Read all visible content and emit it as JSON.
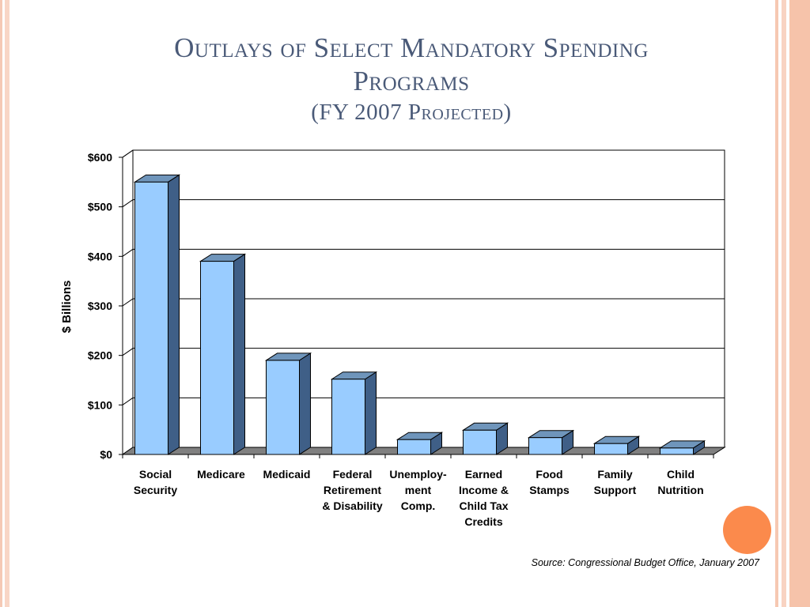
{
  "slide": {
    "title_line1": "Outlays of Select Mandatory Spending",
    "title_line2": "Programs",
    "title_line3": "(FY 2007 Projected)",
    "source": "Source: Congressional Budget Office, January 2007"
  },
  "colors": {
    "bar_front": "#99ccff",
    "bar_top": "#6f95bb",
    "bar_side": "#3f5f87",
    "title": "#4a5a78",
    "accent_circle": "#fb8a4c"
  },
  "chart_data": {
    "type": "bar",
    "title": "",
    "xlabel": "",
    "ylabel": "$ Billions",
    "ylim": [
      0,
      600
    ],
    "yticks": [
      0,
      100,
      200,
      300,
      400,
      500,
      600
    ],
    "ytick_labels": [
      "$0",
      "$100",
      "$200",
      "$300",
      "$400",
      "$500",
      "$600"
    ],
    "grid": true,
    "legend": "none",
    "categories": [
      [
        "Social",
        "Security"
      ],
      [
        "Medicare"
      ],
      [
        "Medicaid"
      ],
      [
        "Federal",
        "Retirement",
        "& Disability"
      ],
      [
        "Unemploy-",
        "ment",
        "Comp."
      ],
      [
        "Earned",
        "Income &",
        "Child Tax",
        "Credits"
      ],
      [
        "Food",
        "Stamps"
      ],
      [
        "Family",
        "Support"
      ],
      [
        "Child",
        "Nutrition"
      ]
    ],
    "values": [
      550,
      390,
      190,
      152,
      30,
      49,
      34,
      22,
      13
    ]
  }
}
